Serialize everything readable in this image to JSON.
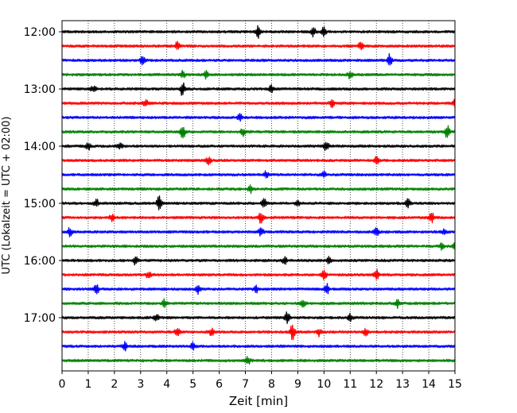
{
  "chart_data": {
    "type": "line",
    "title": "",
    "xlabel": "Zeit  [min]",
    "ylabel": "UTC (Lokalzeit = UTC + 02:00)",
    "xlim": [
      0,
      15
    ],
    "x_ticks": [
      0,
      1,
      2,
      3,
      4,
      5,
      6,
      7,
      8,
      9,
      10,
      11,
      12,
      13,
      14,
      15
    ],
    "x_tick_labels": [
      "0",
      "1",
      "2",
      "3",
      "4",
      "5",
      "6",
      "7",
      "8",
      "9",
      "10",
      "11",
      "12",
      "13",
      "14",
      "15"
    ],
    "y_tick_labels": [
      "12:00",
      "13:00",
      "14:00",
      "15:00",
      "16:00",
      "17:00"
    ],
    "y_tick_times": [
      "12:00",
      "13:00",
      "14:00",
      "15:00",
      "16:00",
      "17:00"
    ],
    "trace_interval_min": 15,
    "color_cycle": [
      "#000000",
      "#ff0000",
      "#0000ff",
      "#008000"
    ],
    "grid": "vertical dotted",
    "series": [
      {
        "start": "12:00",
        "events": [
          [
            7.5,
            2.2
          ],
          [
            9.6,
            1.6
          ],
          [
            10.0,
            1.5
          ]
        ]
      },
      {
        "start": "12:15",
        "events": [
          [
            4.4,
            1.5
          ],
          [
            11.4,
            1.3
          ]
        ]
      },
      {
        "start": "12:30",
        "events": [
          [
            3.1,
            2.2
          ],
          [
            12.5,
            2.4
          ]
        ]
      },
      {
        "start": "12:45",
        "events": [
          [
            4.6,
            1.4
          ],
          [
            5.5,
            1.5
          ],
          [
            11.0,
            1.4
          ]
        ]
      },
      {
        "start": "13:00",
        "events": [
          [
            4.6,
            2.5
          ],
          [
            1.2,
            1.2
          ],
          [
            8.0,
            1.3
          ]
        ]
      },
      {
        "start": "13:15",
        "events": [
          [
            3.2,
            1.3
          ],
          [
            10.3,
            1.3
          ],
          [
            15.0,
            1.2
          ]
        ]
      },
      {
        "start": "13:30",
        "events": [
          [
            6.8,
            1.2
          ]
        ]
      },
      {
        "start": "13:45",
        "events": [
          [
            4.6,
            3.0
          ],
          [
            6.9,
            1.4
          ],
          [
            14.7,
            2.4
          ]
        ]
      },
      {
        "start": "14:00",
        "events": [
          [
            1.0,
            1.3
          ],
          [
            10.1,
            2.0
          ],
          [
            2.2,
            1.2
          ]
        ]
      },
      {
        "start": "14:15",
        "events": [
          [
            5.6,
            1.4
          ],
          [
            12.0,
            1.3
          ]
        ]
      },
      {
        "start": "14:30",
        "events": [
          [
            7.8,
            1.3
          ],
          [
            10.0,
            1.2
          ]
        ]
      },
      {
        "start": "14:45",
        "events": [
          [
            7.2,
            1.2
          ]
        ]
      },
      {
        "start": "15:00",
        "events": [
          [
            3.7,
            2.4
          ],
          [
            1.3,
            1.5
          ],
          [
            7.7,
            1.8
          ],
          [
            9.0,
            1.3
          ],
          [
            13.2,
            1.4
          ]
        ]
      },
      {
        "start": "15:15",
        "events": [
          [
            7.6,
            2.2
          ],
          [
            14.1,
            2.0
          ],
          [
            1.9,
            1.2
          ]
        ]
      },
      {
        "start": "15:30",
        "events": [
          [
            0.3,
            1.4
          ],
          [
            7.6,
            1.6
          ],
          [
            12.0,
            1.4
          ],
          [
            14.6,
            1.2
          ]
        ]
      },
      {
        "start": "15:45",
        "events": [
          [
            15.0,
            1.5
          ],
          [
            14.5,
            1.3
          ]
        ]
      },
      {
        "start": "16:00",
        "events": [
          [
            2.8,
            1.3
          ],
          [
            8.5,
            1.2
          ],
          [
            10.2,
            1.2
          ]
        ]
      },
      {
        "start": "16:15",
        "events": [
          [
            10.0,
            1.9
          ],
          [
            12.0,
            1.8
          ],
          [
            3.3,
            1.2
          ]
        ]
      },
      {
        "start": "16:30",
        "events": [
          [
            1.3,
            2.4
          ],
          [
            5.2,
            1.6
          ],
          [
            10.1,
            2.1
          ],
          [
            7.4,
            1.3
          ]
        ]
      },
      {
        "start": "16:45",
        "events": [
          [
            3.9,
            1.3
          ],
          [
            12.8,
            1.4
          ],
          [
            9.2,
            1.3
          ]
        ]
      },
      {
        "start": "17:00",
        "events": [
          [
            8.6,
            1.9
          ],
          [
            3.6,
            1.2
          ],
          [
            11.0,
            1.3
          ]
        ]
      },
      {
        "start": "17:15",
        "events": [
          [
            8.8,
            2.8
          ],
          [
            9.8,
            1.6
          ],
          [
            4.4,
            1.4
          ],
          [
            5.7,
            1.3
          ],
          [
            11.6,
            1.3
          ]
        ]
      },
      {
        "start": "17:30",
        "events": [
          [
            2.4,
            1.4
          ],
          [
            5.0,
            1.2
          ]
        ]
      },
      {
        "start": "17:45",
        "events": [
          [
            7.1,
            1.2
          ]
        ]
      }
    ]
  }
}
